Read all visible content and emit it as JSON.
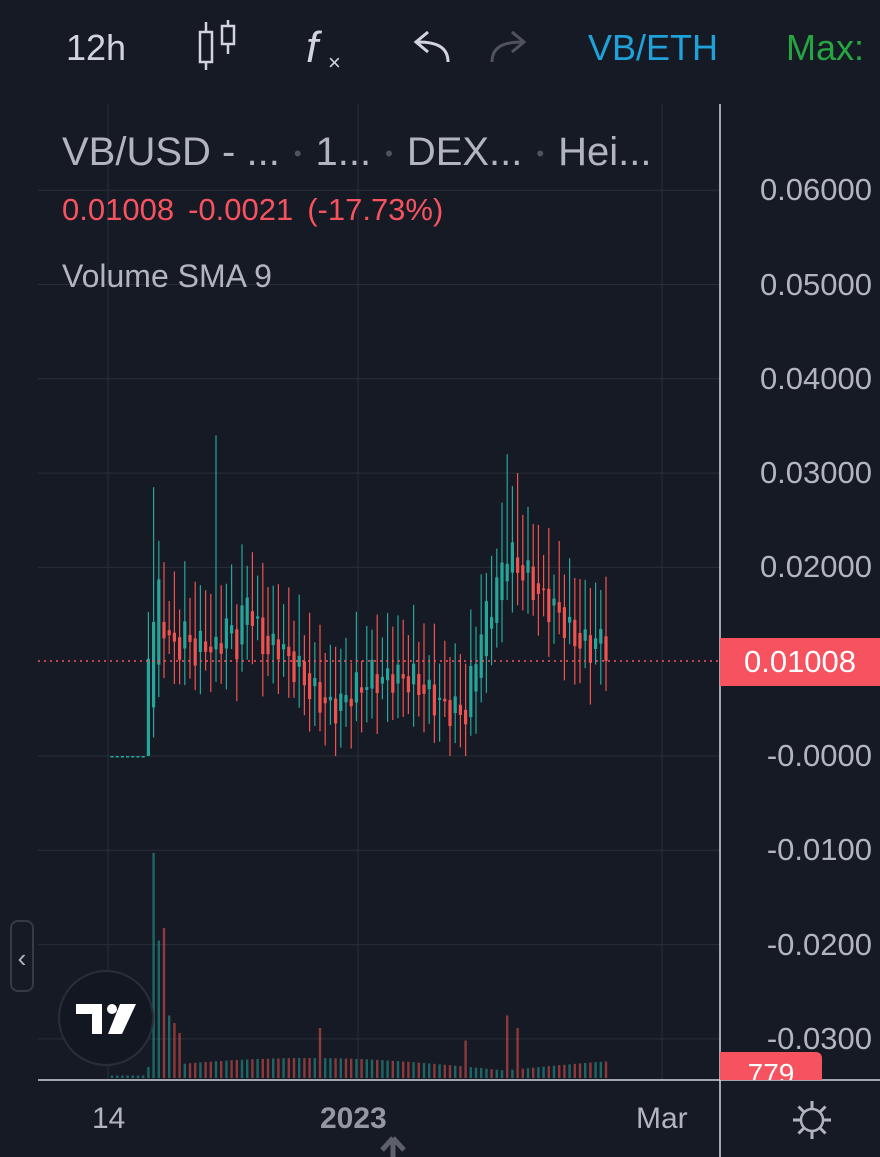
{
  "toolbar": {
    "interval": "12h",
    "pair": "VB/ETH",
    "max_label": "Max:",
    "colors": {
      "pair": "#1fa1d9",
      "max": "#26a641",
      "redo_disabled": "#50535e"
    }
  },
  "legend": {
    "symbol": "VB/USD - ...",
    "interval": "1...",
    "exchange": "DEX...",
    "chart_style": "Hei...",
    "last": "0.01008",
    "change": "-0.0021",
    "change_pct": "(-17.73%)",
    "volume_indicator": "Volume SMA 9"
  },
  "last_price_label": "0.01008",
  "volume_label": "779",
  "time_axis": {
    "left": "14",
    "middle": "2023",
    "right": "Mar"
  },
  "chart_data": {
    "type": "candlestick",
    "style": "heikin-ashi",
    "ylim": [
      -0.035,
      0.065
    ],
    "yticks": [
      "0.06000",
      "0.05000",
      "0.04000",
      "0.03000",
      "0.02000",
      "-0.0000",
      "-0.0100",
      "-0.0200",
      "-0.0300"
    ],
    "ytick_values": [
      0.06,
      0.05,
      0.04,
      0.03,
      0.02,
      0.0,
      -0.01,
      -0.02,
      -0.03
    ],
    "xticks": [
      "14",
      "2023",
      "Mar"
    ],
    "last_value": 0.01008,
    "colors": {
      "up": "#26a69a",
      "down": "#ef5350",
      "grid": "#2a2e39",
      "price_line": "#f7525f"
    },
    "close_anchors": [
      [
        0,
        0.0
      ],
      [
        5,
        0.0
      ],
      [
        6,
        0.0
      ],
      [
        7,
        0.011
      ],
      [
        8,
        0.015
      ],
      [
        9,
        0.017
      ],
      [
        10,
        0.014
      ],
      [
        12,
        0.011
      ],
      [
        14,
        0.013
      ],
      [
        16,
        0.011
      ],
      [
        18,
        0.012
      ],
      [
        20,
        0.011
      ],
      [
        22,
        0.014
      ],
      [
        24,
        0.012
      ],
      [
        26,
        0.017
      ],
      [
        28,
        0.013
      ],
      [
        30,
        0.011
      ],
      [
        32,
        0.012
      ],
      [
        34,
        0.01
      ],
      [
        36,
        0.009
      ],
      [
        38,
        0.007
      ],
      [
        40,
        0.006
      ],
      [
        42,
        0.005
      ],
      [
        44,
        0.0055
      ],
      [
        46,
        0.0068
      ],
      [
        48,
        0.0075
      ],
      [
        50,
        0.0085
      ],
      [
        52,
        0.008
      ],
      [
        54,
        0.0085
      ],
      [
        56,
        0.0082
      ],
      [
        58,
        0.008
      ],
      [
        60,
        0.007
      ],
      [
        62,
        0.006
      ],
      [
        64,
        0.005
      ],
      [
        66,
        0.0048
      ],
      [
        68,
        0.0045
      ],
      [
        70,
        0.011
      ],
      [
        72,
        0.015
      ],
      [
        74,
        0.018
      ],
      [
        76,
        0.022
      ],
      [
        78,
        0.02
      ],
      [
        80,
        0.019
      ],
      [
        82,
        0.017
      ],
      [
        84,
        0.016
      ],
      [
        86,
        0.015
      ],
      [
        88,
        0.013
      ],
      [
        90,
        0.012
      ],
      [
        92,
        0.0115
      ],
      [
        94,
        0.0125
      ],
      [
        95,
        0.01008
      ]
    ],
    "highs": {
      "8": 0.0285,
      "20": 0.034,
      "76": 0.032,
      "78": 0.03
    },
    "volume_spikes": {
      "8": 0.9,
      "9": 0.55,
      "10": 0.6,
      "11": 0.25,
      "12": 0.22,
      "13": 0.18,
      "40": 0.2,
      "68": 0.15,
      "76": 0.25,
      "78": 0.2
    }
  }
}
